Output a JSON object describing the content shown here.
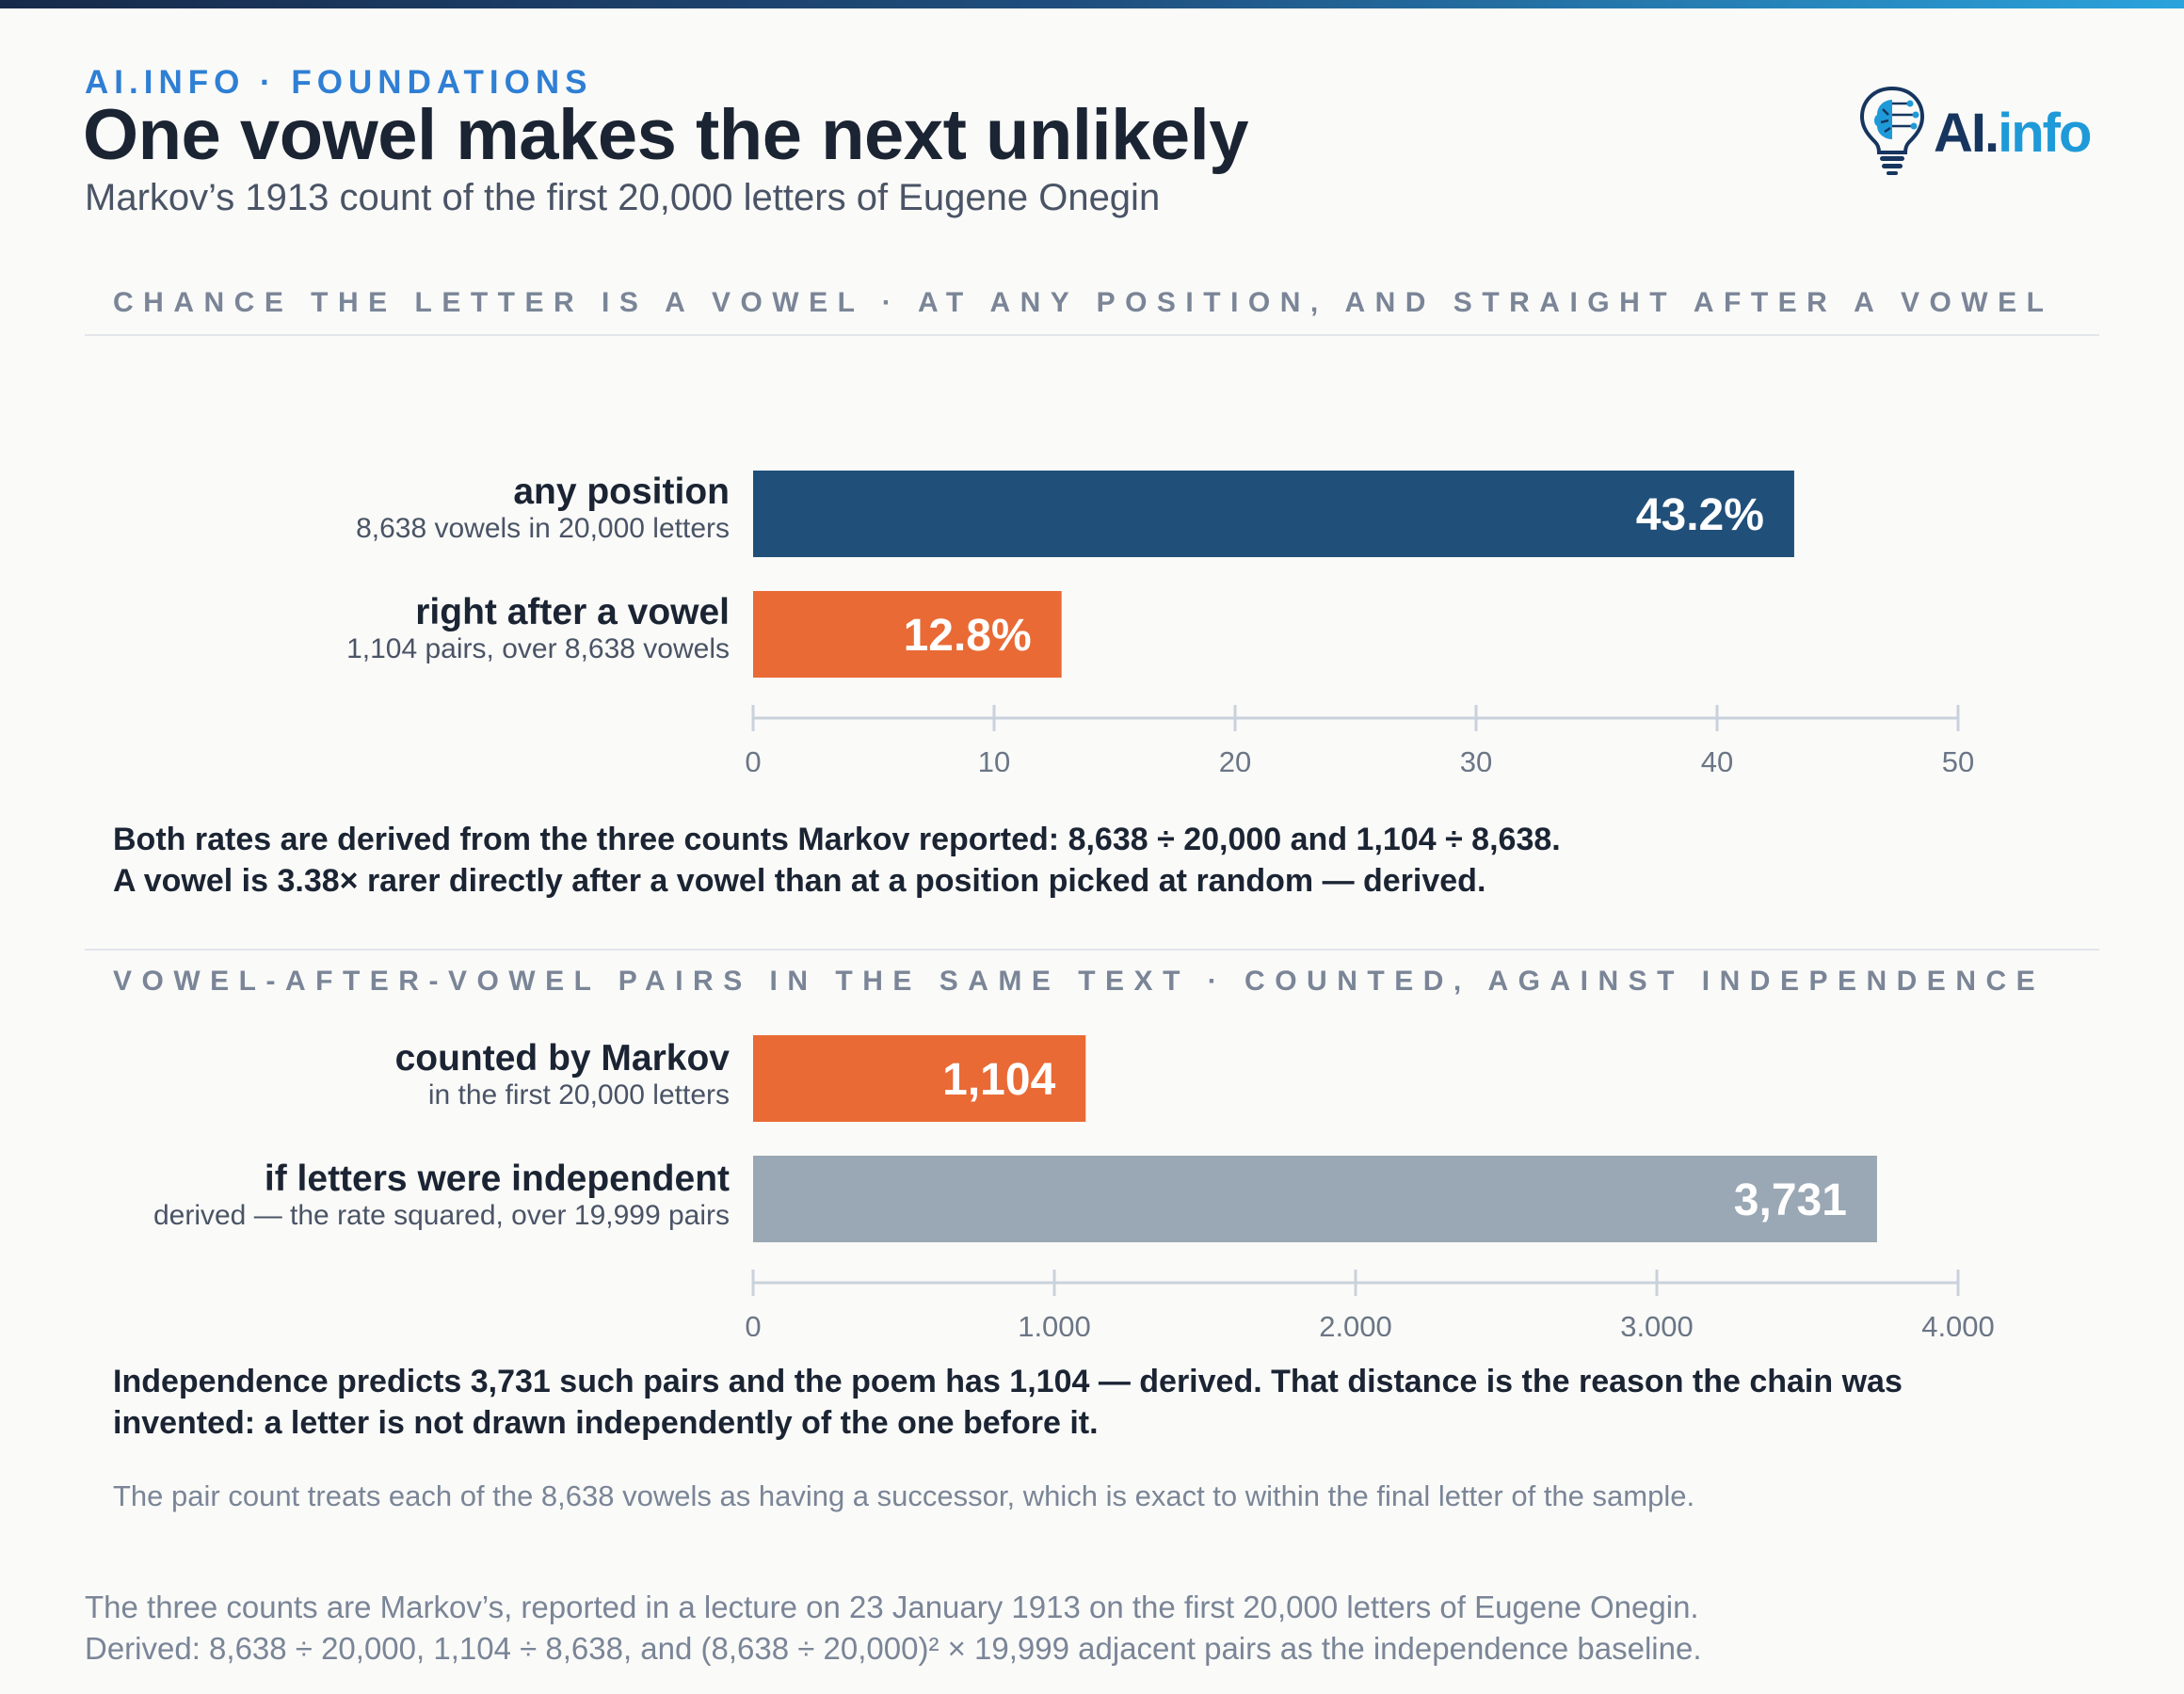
{
  "header": {
    "kicker": "AI.INFO · FOUNDATIONS",
    "title": "One vowel makes the next unlikely",
    "subtitle": "Markov’s 1913 count of the first 20,000 letters of Eugene Onegin",
    "logo_ai": "AI.",
    "logo_info": "info"
  },
  "colors": {
    "navy": "#204f79",
    "orange": "#e96a35",
    "gray": "#9aa7b4",
    "axis": "#c9d2dc",
    "tick_text": "#6b7686"
  },
  "chart_data": [
    {
      "type": "bar",
      "orientation": "horizontal",
      "title": "CHANCE THE LETTER IS A VOWEL · AT ANY POSITION, AND STRAIGHT AFTER A VOWEL",
      "categories": [
        "any position",
        "right after a vowel"
      ],
      "sublabels": [
        "8,638 vowels in 20,000 letters",
        "1,104 pairs, over 8,638 vowels"
      ],
      "values": [
        43.2,
        12.8
      ],
      "value_labels": [
        "43.2%",
        "12.8%"
      ],
      "colors": [
        "#204f79",
        "#e96a35"
      ],
      "xlim": [
        0,
        50
      ],
      "ticks": [
        0,
        10,
        20,
        30,
        40,
        50
      ],
      "tick_labels": [
        "0",
        "10",
        "20",
        "30",
        "40",
        "50"
      ],
      "grid": false
    },
    {
      "type": "bar",
      "orientation": "horizontal",
      "title": "VOWEL-AFTER-VOWEL PAIRS IN THE SAME TEXT · COUNTED, AGAINST INDEPENDENCE",
      "categories": [
        "counted by Markov",
        "if letters were independent"
      ],
      "sublabels": [
        "in the first 20,000 letters",
        "derived — the rate squared, over 19,999 pairs"
      ],
      "values": [
        1104,
        3731
      ],
      "value_labels": [
        "1,104",
        "3,731"
      ],
      "colors": [
        "#e96a35",
        "#9aa7b4"
      ],
      "xlim": [
        0,
        4000
      ],
      "ticks": [
        0,
        1000,
        2000,
        3000,
        4000
      ],
      "tick_labels": [
        "0",
        "1,000",
        "2,000",
        "3,000",
        "4,000"
      ],
      "grid": false
    }
  ],
  "notes": {
    "rates_line1": "Both rates are derived from the three counts Markov reported: 8,638 ÷ 20,000 and 1,104 ÷ 8,638.",
    "rates_line2": "A vowel is 3.38× rarer directly after a vowel than at a position picked at random — derived.",
    "pairs": "Independence predicts 3,731 such pairs and the poem has 1,104 — derived. That distance is the reason the chain was invented: a letter is not drawn independently of the one before it.",
    "footnote": "The pair count treats each of the 8,638 vowels as having a successor, which is exact to within the final letter of the sample."
  },
  "source": {
    "line1": "The three counts are Markov’s, reported in a lecture on 23 January 1913 on the first 20,000 letters of Eugene Onegin.",
    "line2": "Derived: 8,638 ÷ 20,000, 1,104 ÷ 8,638, and (8,638 ÷ 20,000)² × 19,999 adjacent pairs as the independence baseline."
  }
}
